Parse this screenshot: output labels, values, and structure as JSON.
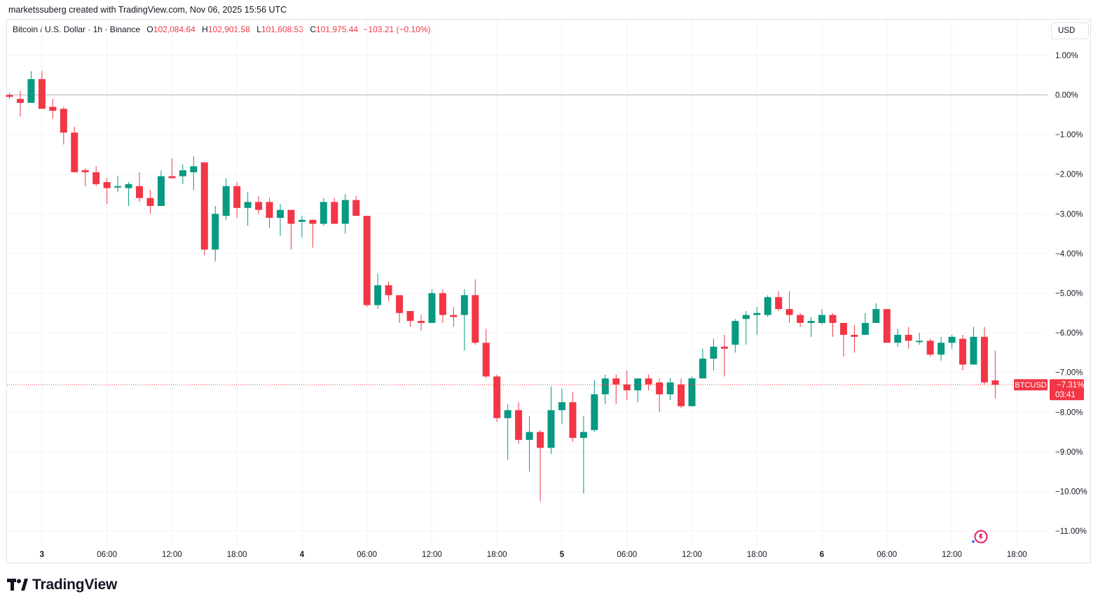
{
  "header": {
    "credit": "marketssuberg created with TradingView.com, Nov 06, 2025 15:56 UTC"
  },
  "legend": {
    "symbol": "Bitcoin / U.S. Dollar · 1h · Binance",
    "o_label": "O",
    "o_value": "102,084.64",
    "h_label": "H",
    "h_value": "102,901.58",
    "l_label": "L",
    "l_value": "101,608.53",
    "c_label": "C",
    "c_value": "101,975.44",
    "change": "−103.21 (−0.10%)"
  },
  "currency_button": "USD",
  "branding": {
    "name": "TradingView"
  },
  "colors": {
    "up": "#089981",
    "down": "#f23645",
    "grid": "#f0f3fa",
    "baseline": "#b2b5be",
    "price_line": "#f23645",
    "text": "#131722"
  },
  "chart_data": {
    "type": "candlestick",
    "symbol": "BTCUSD",
    "interval": "1h",
    "y_unit": "percent change",
    "ylim": [
      -11.3,
      1.5
    ],
    "yticks": [
      1,
      0,
      -1,
      -2,
      -3,
      -4,
      -5,
      -6,
      -7,
      -8,
      -9,
      -10,
      -11
    ],
    "ytick_labels": [
      "1.00%",
      "0.00%",
      "−1.00%",
      "−2.00%",
      "−3.00%",
      "−4.00%",
      "−5.00%",
      "−6.00%",
      "−7.00%",
      "−8.00%",
      "−9.00%",
      "−10.00%",
      "−11.00%"
    ],
    "xtick_labels": [
      "3",
      "06:00",
      "12:00",
      "18:00",
      "4",
      "06:00",
      "12:00",
      "18:00",
      "5",
      "06:00",
      "12:00",
      "18:00",
      "6",
      "06:00",
      "12:00",
      "18:00"
    ],
    "xtick_bar_index": [
      3,
      9,
      15,
      21,
      27,
      33,
      39,
      45,
      51,
      57,
      63,
      69,
      75,
      81,
      87,
      93
    ],
    "grid": true,
    "baseline": 0,
    "current": {
      "label": "BTCUSD",
      "value": -7.31,
      "value_label": "−7.31%",
      "countdown": "03:41"
    },
    "candles": [
      {
        "o": 0.0,
        "h": 0.05,
        "l": -0.1,
        "c": -0.05
      },
      {
        "o": -0.1,
        "h": 0.1,
        "l": -0.55,
        "c": -0.2
      },
      {
        "o": -0.2,
        "h": 0.6,
        "l": -0.2,
        "c": 0.4
      },
      {
        "o": 0.4,
        "h": 0.6,
        "l": -0.35,
        "c": -0.35
      },
      {
        "o": -0.3,
        "h": -0.1,
        "l": -0.6,
        "c": -0.4
      },
      {
        "o": -0.35,
        "h": -0.3,
        "l": -1.25,
        "c": -0.95
      },
      {
        "o": -0.95,
        "h": -0.8,
        "l": -1.95,
        "c": -1.95
      },
      {
        "o": -1.9,
        "h": -1.85,
        "l": -2.3,
        "c": -1.95
      },
      {
        "o": -1.95,
        "h": -1.8,
        "l": -2.3,
        "c": -2.25
      },
      {
        "o": -2.2,
        "h": -2.1,
        "l": -2.75,
        "c": -2.35
      },
      {
        "o": -2.3,
        "h": -2.05,
        "l": -2.45,
        "c": -2.3
      },
      {
        "o": -2.35,
        "h": -2.2,
        "l": -2.8,
        "c": -2.25
      },
      {
        "o": -2.3,
        "h": -1.95,
        "l": -2.7,
        "c": -2.6
      },
      {
        "o": -2.6,
        "h": -2.4,
        "l": -3.0,
        "c": -2.8
      },
      {
        "o": -2.8,
        "h": -1.9,
        "l": -2.8,
        "c": -2.05
      },
      {
        "o": -2.05,
        "h": -1.6,
        "l": -2.1,
        "c": -2.1
      },
      {
        "o": -2.05,
        "h": -1.75,
        "l": -2.25,
        "c": -1.9
      },
      {
        "o": -1.95,
        "h": -1.55,
        "l": -2.4,
        "c": -1.8
      },
      {
        "o": -1.7,
        "h": -1.7,
        "l": -4.05,
        "c": -3.9
      },
      {
        "o": -3.9,
        "h": -2.8,
        "l": -4.2,
        "c": -3.0
      },
      {
        "o": -3.05,
        "h": -2.1,
        "l": -3.15,
        "c": -2.3
      },
      {
        "o": -2.3,
        "h": -2.2,
        "l": -3.1,
        "c": -2.85
      },
      {
        "o": -2.85,
        "h": -2.45,
        "l": -3.3,
        "c": -2.7
      },
      {
        "o": -2.7,
        "h": -2.55,
        "l": -3.0,
        "c": -2.9
      },
      {
        "o": -2.7,
        "h": -2.6,
        "l": -3.35,
        "c": -3.1
      },
      {
        "o": -3.1,
        "h": -2.75,
        "l": -3.55,
        "c": -2.9
      },
      {
        "o": -2.9,
        "h": -2.9,
        "l": -3.9,
        "c": -3.25
      },
      {
        "o": -3.2,
        "h": -3.05,
        "l": -3.6,
        "c": -3.15
      },
      {
        "o": -3.15,
        "h": -3.15,
        "l": -3.85,
        "c": -3.25
      },
      {
        "o": -3.25,
        "h": -2.6,
        "l": -3.3,
        "c": -2.7
      },
      {
        "o": -2.7,
        "h": -2.6,
        "l": -3.25,
        "c": -3.25
      },
      {
        "o": -3.25,
        "h": -2.5,
        "l": -3.5,
        "c": -2.65
      },
      {
        "o": -2.65,
        "h": -2.55,
        "l": -3.0,
        "c": -3.05
      },
      {
        "o": -3.05,
        "h": -3.05,
        "l": -5.35,
        "c": -5.3
      },
      {
        "o": -5.3,
        "h": -4.5,
        "l": -5.4,
        "c": -4.8
      },
      {
        "o": -4.8,
        "h": -4.7,
        "l": -5.2,
        "c": -5.05
      },
      {
        "o": -5.05,
        "h": -5.05,
        "l": -5.75,
        "c": -5.5
      },
      {
        "o": -5.45,
        "h": -5.45,
        "l": -5.85,
        "c": -5.7
      },
      {
        "o": -5.7,
        "h": -5.55,
        "l": -5.95,
        "c": -5.75
      },
      {
        "o": -5.75,
        "h": -4.9,
        "l": -5.75,
        "c": -5.0
      },
      {
        "o": -5.0,
        "h": -4.9,
        "l": -5.75,
        "c": -5.55
      },
      {
        "o": -5.55,
        "h": -5.35,
        "l": -5.85,
        "c": -5.6
      },
      {
        "o": -5.55,
        "h": -4.9,
        "l": -6.45,
        "c": -5.05
      },
      {
        "o": -5.05,
        "h": -4.65,
        "l": -6.3,
        "c": -6.25
      },
      {
        "o": -6.25,
        "h": -5.9,
        "l": -7.15,
        "c": -7.1
      },
      {
        "o": -7.1,
        "h": -7.05,
        "l": -8.25,
        "c": -8.15
      },
      {
        "o": -8.15,
        "h": -7.8,
        "l": -9.2,
        "c": -7.95
      },
      {
        "o": -7.95,
        "h": -7.75,
        "l": -8.8,
        "c": -8.7
      },
      {
        "o": -8.7,
        "h": -8.1,
        "l": -9.5,
        "c": -8.5
      },
      {
        "o": -8.5,
        "h": -8.45,
        "l": -10.25,
        "c": -8.9
      },
      {
        "o": -8.9,
        "h": -7.35,
        "l": -9.05,
        "c": -7.95
      },
      {
        "o": -7.95,
        "h": -7.4,
        "l": -8.3,
        "c": -7.75
      },
      {
        "o": -7.75,
        "h": -7.5,
        "l": -8.75,
        "c": -8.65
      },
      {
        "o": -8.65,
        "h": -8.1,
        "l": -10.05,
        "c": -8.5
      },
      {
        "o": -8.45,
        "h": -7.2,
        "l": -8.5,
        "c": -7.55
      },
      {
        "o": -7.55,
        "h": -7.05,
        "l": -7.8,
        "c": -7.15
      },
      {
        "o": -7.15,
        "h": -7.05,
        "l": -7.8,
        "c": -7.3
      },
      {
        "o": -7.3,
        "h": -6.95,
        "l": -7.7,
        "c": -7.45
      },
      {
        "o": -7.45,
        "h": -7.2,
        "l": -7.75,
        "c": -7.15
      },
      {
        "o": -7.15,
        "h": -7.05,
        "l": -7.45,
        "c": -7.3
      },
      {
        "o": -7.25,
        "h": -7.15,
        "l": -8.0,
        "c": -7.55
      },
      {
        "o": -7.55,
        "h": -7.15,
        "l": -7.7,
        "c": -7.25
      },
      {
        "o": -7.3,
        "h": -7.15,
        "l": -7.9,
        "c": -7.85
      },
      {
        "o": -7.85,
        "h": -7.1,
        "l": -7.85,
        "c": -7.15
      },
      {
        "o": -7.15,
        "h": -6.4,
        "l": -7.15,
        "c": -6.65
      },
      {
        "o": -6.65,
        "h": -6.15,
        "l": -6.95,
        "c": -6.35
      },
      {
        "o": -6.35,
        "h": -6.05,
        "l": -7.1,
        "c": -6.4
      },
      {
        "o": -6.3,
        "h": -5.65,
        "l": -6.5,
        "c": -5.7
      },
      {
        "o": -5.65,
        "h": -5.45,
        "l": -6.3,
        "c": -5.55
      },
      {
        "o": -5.55,
        "h": -5.35,
        "l": -6.05,
        "c": -5.5
      },
      {
        "o": -5.55,
        "h": -5.05,
        "l": -5.6,
        "c": -5.1
      },
      {
        "o": -5.1,
        "h": -4.95,
        "l": -5.45,
        "c": -5.4
      },
      {
        "o": -5.4,
        "h": -4.95,
        "l": -5.75,
        "c": -5.55
      },
      {
        "o": -5.55,
        "h": -5.5,
        "l": -5.85,
        "c": -5.75
      },
      {
        "o": -5.75,
        "h": -5.6,
        "l": -6.1,
        "c": -5.7
      },
      {
        "o": -5.75,
        "h": -5.4,
        "l": -5.8,
        "c": -5.55
      },
      {
        "o": -5.55,
        "h": -5.5,
        "l": -6.1,
        "c": -5.75
      },
      {
        "o": -5.75,
        "h": -5.75,
        "l": -6.6,
        "c": -6.05
      },
      {
        "o": -6.05,
        "h": -5.8,
        "l": -6.5,
        "c": -6.1
      },
      {
        "o": -6.05,
        "h": -5.5,
        "l": -6.05,
        "c": -5.75
      },
      {
        "o": -5.75,
        "h": -5.25,
        "l": -5.75,
        "c": -5.4
      },
      {
        "o": -5.4,
        "h": -5.4,
        "l": -6.25,
        "c": -6.25
      },
      {
        "o": -6.25,
        "h": -5.9,
        "l": -6.35,
        "c": -6.05
      },
      {
        "o": -6.05,
        "h": -5.85,
        "l": -6.4,
        "c": -6.2
      },
      {
        "o": -6.2,
        "h": -6.0,
        "l": -6.3,
        "c": -6.2
      },
      {
        "o": -6.2,
        "h": -6.15,
        "l": -6.6,
        "c": -6.55
      },
      {
        "o": -6.55,
        "h": -6.1,
        "l": -6.7,
        "c": -6.25
      },
      {
        "o": -6.25,
        "h": -6.05,
        "l": -6.4,
        "c": -6.1
      },
      {
        "o": -6.15,
        "h": -6.05,
        "l": -6.95,
        "c": -6.8
      },
      {
        "o": -6.8,
        "h": -5.85,
        "l": -6.8,
        "c": -6.1
      },
      {
        "o": -6.1,
        "h": -5.85,
        "l": -7.3,
        "c": -7.25
      },
      {
        "o": -7.2,
        "h": -6.45,
        "l": -7.65,
        "c": -7.31
      }
    ]
  }
}
